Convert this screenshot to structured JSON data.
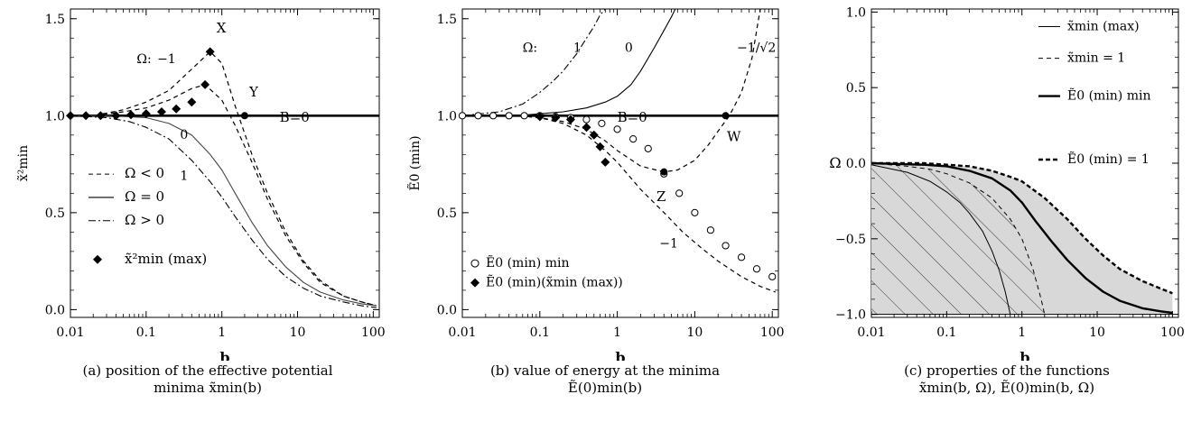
{
  "chart_data": [
    {
      "type": "line",
      "panel_label": "(a)",
      "caption_line1": "position of the effective potential",
      "caption_line2": "minima x̃min(b)",
      "xlabel": "b",
      "ylabel": "x̃²min",
      "xscale": "log",
      "xlim": [
        0.01,
        120
      ],
      "ylim": [
        -0.04,
        1.55
      ],
      "x_ticks": [
        0.01,
        0.1,
        1,
        10,
        100
      ],
      "x_tick_labels": [
        "0.01",
        "0.1",
        "1",
        "10",
        "100"
      ],
      "y_ticks": [
        0.0,
        0.5,
        1.0,
        1.5
      ],
      "y_tick_labels": [
        "0.0",
        "0.5",
        "1.0",
        "1.5"
      ],
      "legend": {
        "position": "lower-left",
        "entries": [
          {
            "label": "Ω < 0",
            "style": "dashed"
          },
          {
            "label": "Ω = 0",
            "style": "solid"
          },
          {
            "label": "Ω > 0",
            "style": "dashdot"
          },
          {
            "label": "x̃²min (max)",
            "style": "diamond"
          }
        ]
      },
      "annotations": [
        "X",
        "Y",
        "B=0",
        "Ω:",
        "−1",
        "0",
        "1"
      ],
      "series": [
        {
          "style": "bold",
          "x": [
            0.01,
            120
          ],
          "y": [
            1.0,
            1.0
          ]
        },
        {
          "style": "dashed",
          "x": [
            0.01,
            0.02,
            0.05,
            0.1,
            0.2,
            0.4,
            0.7,
            1.0,
            1.5,
            2.5,
            4,
            7,
            12,
            20,
            40,
            70,
            110
          ],
          "y": [
            1.0,
            1.0,
            1.03,
            1.07,
            1.13,
            1.24,
            1.33,
            1.27,
            1.05,
            0.8,
            0.6,
            0.4,
            0.25,
            0.15,
            0.07,
            0.04,
            0.02
          ]
        },
        {
          "style": "dashed",
          "x": [
            0.01,
            0.02,
            0.05,
            0.1,
            0.2,
            0.4,
            0.6,
            1.0,
            1.5,
            2.5,
            4,
            7,
            12,
            20,
            40,
            70,
            110
          ],
          "y": [
            1.0,
            1.0,
            1.02,
            1.04,
            1.08,
            1.14,
            1.16,
            1.08,
            0.95,
            0.76,
            0.57,
            0.38,
            0.24,
            0.14,
            0.07,
            0.04,
            0.02
          ]
        },
        {
          "style": "solid",
          "x": [
            0.01,
            0.03,
            0.1,
            0.2,
            0.4,
            0.7,
            1.0,
            1.5,
            2.5,
            4,
            7,
            12,
            20,
            40,
            70,
            110
          ],
          "y": [
            1.0,
            1.0,
            0.99,
            0.96,
            0.9,
            0.8,
            0.72,
            0.6,
            0.45,
            0.33,
            0.22,
            0.14,
            0.09,
            0.05,
            0.03,
            0.02
          ]
        },
        {
          "style": "dashdot",
          "x": [
            0.01,
            0.03,
            0.06,
            0.1,
            0.2,
            0.4,
            0.7,
            1.0,
            1.5,
            2.5,
            4,
            7,
            12,
            20,
            40,
            70,
            110
          ],
          "y": [
            1.0,
            0.99,
            0.97,
            0.94,
            0.88,
            0.77,
            0.66,
            0.58,
            0.48,
            0.36,
            0.26,
            0.17,
            0.11,
            0.07,
            0.04,
            0.02,
            0.01
          ]
        },
        {
          "style": "diamond",
          "x": [
            0.01,
            0.016,
            0.025,
            0.04,
            0.063,
            0.1,
            0.16,
            0.25,
            0.4,
            0.6,
            0.7
          ],
          "y": [
            1.0,
            1.0,
            1.0,
            1.0,
            1.005,
            1.01,
            1.02,
            1.035,
            1.07,
            1.16,
            1.33
          ]
        },
        {
          "style": "point",
          "x": [
            2.0
          ],
          "y": [
            1.0
          ]
        }
      ]
    },
    {
      "type": "line",
      "panel_label": "(b)",
      "caption_line1": "value of energy at the minima",
      "caption_line2": "Ẽ(0)min(b)",
      "xlabel": "b",
      "ylabel": "Ẽ0 (min)",
      "xscale": "log",
      "xlim": [
        0.01,
        120
      ],
      "ylim": [
        -0.04,
        1.55
      ],
      "x_ticks": [
        0.01,
        0.1,
        1,
        10,
        100
      ],
      "x_tick_labels": [
        "0.01",
        "0.1",
        "1",
        "10",
        "100"
      ],
      "y_ticks": [
        0.0,
        0.5,
        1.0,
        1.5
      ],
      "y_tick_labels": [
        "0.0",
        "0.5",
        "1.0",
        "1.5"
      ],
      "legend": {
        "position": "lower-left",
        "entries": [
          {
            "label": "Ẽ0 (min) min",
            "style": "circle"
          },
          {
            "label": "Ẽ0 (min)(x̃min (max))",
            "style": "diamond"
          }
        ]
      },
      "annotations": [
        "Ω:",
        "1",
        "0",
        "−1/√2",
        "B=0",
        "W",
        "Z",
        "−1"
      ],
      "series": [
        {
          "style": "bold",
          "x": [
            0.01,
            120
          ],
          "y": [
            1.0,
            1.0
          ]
        },
        {
          "style": "dashdot",
          "x": [
            0.01,
            0.03,
            0.06,
            0.1,
            0.15,
            0.2,
            0.3,
            0.4,
            0.5,
            0.6,
            0.7
          ],
          "y": [
            1.0,
            1.02,
            1.06,
            1.12,
            1.18,
            1.23,
            1.32,
            1.4,
            1.46,
            1.52,
            1.55
          ]
        },
        {
          "style": "solid",
          "x": [
            0.01,
            0.05,
            0.1,
            0.2,
            0.4,
            0.7,
            1.0,
            1.5,
            2.0,
            3.0,
            4.0,
            5.0,
            5.6
          ],
          "y": [
            1.0,
            1.0,
            1.01,
            1.02,
            1.04,
            1.07,
            1.1,
            1.16,
            1.23,
            1.35,
            1.44,
            1.51,
            1.55
          ]
        },
        {
          "style": "dashed",
          "x": [
            0.01,
            0.05,
            0.1,
            0.2,
            0.4,
            0.7,
            1.0,
            2.0,
            4.0,
            6.0,
            10,
            15,
            20,
            28,
            40,
            55,
            70
          ],
          "y": [
            1.0,
            1.0,
            0.99,
            0.97,
            0.93,
            0.87,
            0.82,
            0.74,
            0.71,
            0.72,
            0.77,
            0.85,
            0.92,
            1.0,
            1.12,
            1.3,
            1.55
          ]
        },
        {
          "style": "dashed",
          "x": [
            0.01,
            0.05,
            0.1,
            0.2,
            0.4,
            0.7,
            1.0,
            2.0,
            4.0,
            7.0,
            12,
            20,
            40,
            70,
            110
          ],
          "y": [
            1.0,
            1.0,
            0.99,
            0.96,
            0.9,
            0.82,
            0.76,
            0.62,
            0.5,
            0.4,
            0.32,
            0.25,
            0.17,
            0.12,
            0.09
          ]
        },
        {
          "style": "circle",
          "x": [
            0.01,
            0.016,
            0.025,
            0.04,
            0.063,
            0.1,
            0.16,
            0.25,
            0.4,
            0.63,
            1.0,
            1.6,
            2.5,
            4.0,
            6.3,
            10,
            16,
            25,
            40,
            63,
            100
          ],
          "y": [
            1.0,
            1.0,
            1.0,
            1.0,
            1.0,
            1.0,
            0.995,
            0.99,
            0.98,
            0.96,
            0.93,
            0.88,
            0.83,
            0.7,
            0.6,
            0.5,
            0.41,
            0.33,
            0.27,
            0.21,
            0.17
          ]
        },
        {
          "style": "diamond",
          "x": [
            0.1,
            0.16,
            0.25,
            0.4,
            0.5,
            0.6,
            0.7
          ],
          "y": [
            0.995,
            0.99,
            0.98,
            0.94,
            0.9,
            0.84,
            0.76
          ]
        },
        {
          "style": "point",
          "x": [
            25,
            4.0
          ],
          "y": [
            1.0,
            0.71
          ]
        }
      ]
    },
    {
      "type": "area",
      "panel_label": "(c)",
      "caption_line1": "properties of the functions",
      "caption_line2": "x̃min(b, Ω), Ẽ(0)min(b, Ω)",
      "xlabel": "b",
      "ylabel": "Ω",
      "xscale": "log",
      "xlim": [
        0.01,
        120
      ],
      "ylim": [
        -1.02,
        1.02
      ],
      "x_ticks": [
        0.01,
        0.1,
        1,
        10,
        100
      ],
      "x_tick_labels": [
        "0.01",
        "0.1",
        "1",
        "10",
        "100"
      ],
      "y_ticks": [
        -1.0,
        -0.5,
        0.0,
        0.5,
        1.0
      ],
      "y_tick_labels": [
        "−1.0",
        "−0.5",
        "0.0",
        "0.5",
        "1.0"
      ],
      "legend": {
        "position": "top-right",
        "entries": [
          {
            "label": "x̃min (max)",
            "style": "thin-solid"
          },
          {
            "label": "x̃min = 1",
            "style": "thin-dashed"
          },
          {
            "label": "Ẽ0 (min) min",
            "style": "bold-solid"
          },
          {
            "label": "Ẽ0 (min) = 1",
            "style": "bold-dashed"
          }
        ]
      },
      "series": [
        {
          "style": "thin-solid",
          "x": [
            0.01,
            0.03,
            0.06,
            0.1,
            0.15,
            0.2,
            0.3,
            0.4,
            0.5,
            0.6,
            0.7
          ],
          "y": [
            -0.01,
            -0.06,
            -0.12,
            -0.19,
            -0.26,
            -0.33,
            -0.45,
            -0.58,
            -0.71,
            -0.85,
            -1.0
          ]
        },
        {
          "style": "thin-dashed",
          "x": [
            0.01,
            0.03,
            0.06,
            0.1,
            0.2,
            0.4,
            0.7,
            1.0,
            1.4,
            1.8,
            2.0
          ],
          "y": [
            0.0,
            -0.02,
            -0.04,
            -0.07,
            -0.13,
            -0.23,
            -0.37,
            -0.5,
            -0.7,
            -0.9,
            -1.0
          ]
        },
        {
          "style": "bold-solid",
          "x": [
            0.01,
            0.05,
            0.1,
            0.2,
            0.4,
            0.7,
            1.0,
            1.5,
            2.5,
            4,
            7,
            12,
            20,
            40,
            70,
            100
          ],
          "y": [
            0.0,
            -0.01,
            -0.02,
            -0.05,
            -0.1,
            -0.18,
            -0.26,
            -0.38,
            -0.52,
            -0.64,
            -0.76,
            -0.85,
            -0.91,
            -0.96,
            -0.98,
            -0.99
          ]
        },
        {
          "style": "bold-dashed",
          "x": [
            0.01,
            0.05,
            0.1,
            0.2,
            0.4,
            0.7,
            1.0,
            2.0,
            4.0,
            7.0,
            12,
            20,
            40,
            70,
            100
          ],
          "y": [
            0.0,
            0.0,
            -0.01,
            -0.02,
            -0.05,
            -0.09,
            -0.12,
            -0.23,
            -0.37,
            -0.5,
            -0.61,
            -0.7,
            -0.78,
            -0.83,
            -0.86
          ]
        }
      ]
    }
  ]
}
